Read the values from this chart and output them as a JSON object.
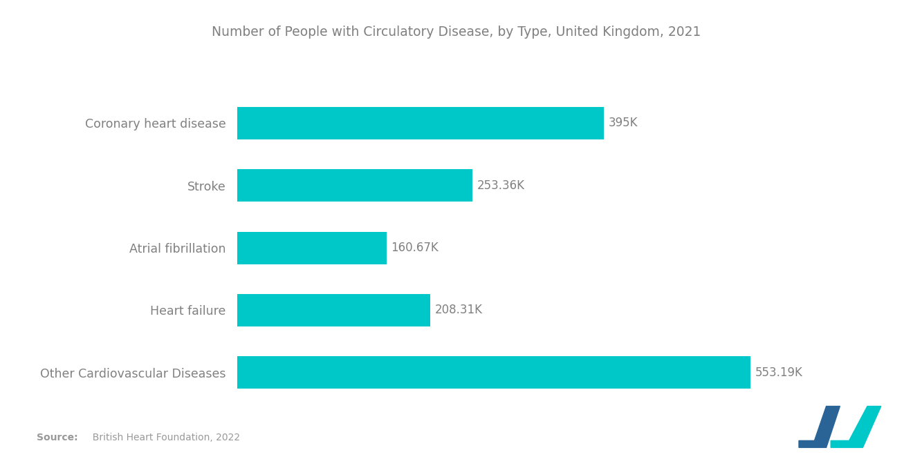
{
  "title": "Number of People with Circulatory Disease, by Type, United Kingdom, 2021",
  "categories": [
    "Coronary heart disease",
    "Stroke",
    "Atrial fibrillation",
    "Heart failure",
    "Other Cardiovascular Diseases"
  ],
  "values": [
    395,
    253.36,
    160.67,
    208.31,
    553.19
  ],
  "labels": [
    "395K",
    "253.36K",
    "160.67K",
    "208.31K",
    "553.19K"
  ],
  "bar_color": "#00C8C8",
  "label_color": "#808080",
  "title_color": "#808080",
  "source_bold": "Source:",
  "source_rest": "  British Heart Foundation, 2022",
  "source_color": "#999999",
  "background_color": "#ffffff",
  "bar_height": 0.52,
  "xlim": [
    0,
    640
  ],
  "logo_left_color": "#2a6496",
  "logo_right_color": "#00C8C8"
}
